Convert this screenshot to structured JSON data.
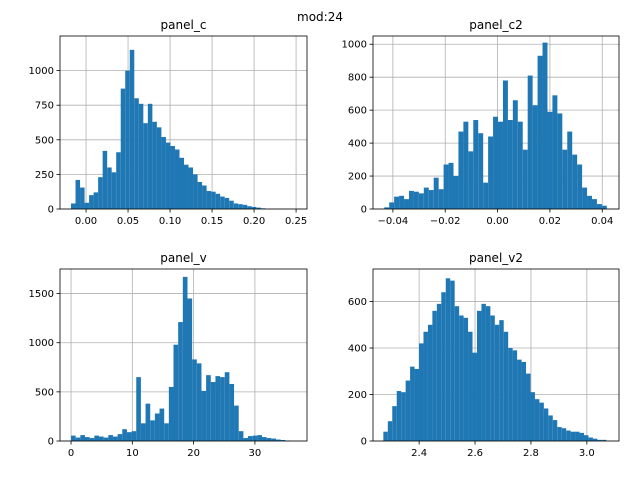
{
  "suptitle": "mod:24",
  "bar_color": "#1f77b4",
  "chart_data": [
    {
      "type": "bar",
      "title": "panel_c",
      "xlim": [
        -0.031,
        0.263
      ],
      "ylim": [
        0,
        1250
      ],
      "xticks": [
        0.0,
        0.05,
        0.1,
        0.15,
        0.2,
        0.25
      ],
      "xtick_labels": [
        "0.00",
        "0.05",
        "0.10",
        "0.15",
        "0.20",
        "0.25"
      ],
      "yticks": [
        0,
        250,
        500,
        750,
        1000
      ],
      "ytick_labels": [
        "0",
        "250",
        "500",
        "750",
        "1000"
      ],
      "grid": true,
      "bin_start": -0.0179,
      "bin_width": 0.00538,
      "values": [
        40,
        210,
        155,
        45,
        100,
        120,
        230,
        420,
        300,
        265,
        410,
        870,
        1000,
        1150,
        800,
        760,
        620,
        760,
        630,
        590,
        520,
        480,
        455,
        430,
        370,
        320,
        300,
        250,
        195,
        170,
        130,
        125,
        110,
        90,
        80,
        60,
        40,
        35,
        30,
        20,
        15,
        10,
        5
      ]
    },
    {
      "type": "bar",
      "title": "panel_c2",
      "xlim": [
        -0.0476,
        0.0464
      ],
      "ylim": [
        0,
        1050
      ],
      "xticks": [
        -0.04,
        -0.02,
        0.0,
        0.02,
        0.04
      ],
      "xtick_labels": [
        "−0.04",
        "−0.02",
        "0.00",
        "0.02",
        "0.04"
      ],
      "yticks": [
        0,
        200,
        400,
        600,
        800,
        1000
      ],
      "ytick_labels": [
        "0",
        "200",
        "400",
        "600",
        "800",
        "1000"
      ],
      "grid": true,
      "bin_start": -0.0433,
      "bin_width": 0.00189,
      "values": [
        10,
        40,
        75,
        80,
        60,
        110,
        105,
        95,
        130,
        115,
        190,
        120,
        270,
        280,
        200,
        470,
        530,
        350,
        540,
        460,
        160,
        440,
        560,
        530,
        780,
        540,
        660,
        530,
        360,
        810,
        630,
        930,
        1010,
        590,
        690,
        580,
        360,
        470,
        330,
        270,
        130,
        80,
        60,
        30,
        20
      ]
    },
    {
      "type": "bar",
      "title": "panel_v",
      "xlim": [
        -1.8,
        38.5
      ],
      "ylim": [
        0,
        1750
      ],
      "xticks": [
        0,
        10,
        20,
        30
      ],
      "xtick_labels": [
        "0",
        "10",
        "20",
        "30"
      ],
      "yticks": [
        0,
        500,
        1000,
        1500
      ],
      "ytick_labels": [
        "0",
        "500",
        "1000",
        "1500"
      ],
      "grid": true,
      "bin_start": 0.0,
      "bin_width": 0.76,
      "values": [
        55,
        35,
        60,
        40,
        30,
        55,
        45,
        35,
        60,
        45,
        70,
        120,
        90,
        100,
        650,
        180,
        380,
        210,
        280,
        330,
        180,
        550,
        980,
        1210,
        1670,
        1450,
        830,
        790,
        510,
        670,
        600,
        660,
        650,
        700,
        580,
        360,
        100,
        30,
        50,
        55,
        60,
        40,
        30,
        25,
        15,
        10,
        5
      ]
    },
    {
      "type": "bar",
      "title": "panel_v2",
      "xlim": [
        2.235,
        3.115
      ],
      "ylim": [
        0,
        740
      ],
      "xticks": [
        2.4,
        2.6,
        2.8,
        3.0
      ],
      "xtick_labels": [
        "2.4",
        "2.6",
        "2.8",
        "3.0"
      ],
      "yticks": [
        0,
        200,
        400,
        600
      ],
      "ytick_labels": [
        "0",
        "200",
        "400",
        "600"
      ],
      "grid": true,
      "bin_start": 2.272,
      "bin_width": 0.01595,
      "values": [
        40,
        85,
        150,
        215,
        210,
        260,
        320,
        310,
        420,
        470,
        500,
        560,
        590,
        640,
        700,
        690,
        580,
        540,
        530,
        470,
        380,
        560,
        590,
        580,
        540,
        500,
        520,
        470,
        400,
        390,
        350,
        340,
        290,
        210,
        180,
        165,
        140,
        110,
        90,
        60,
        55,
        45,
        40,
        40,
        35,
        25,
        15,
        10,
        5,
        5
      ]
    }
  ]
}
